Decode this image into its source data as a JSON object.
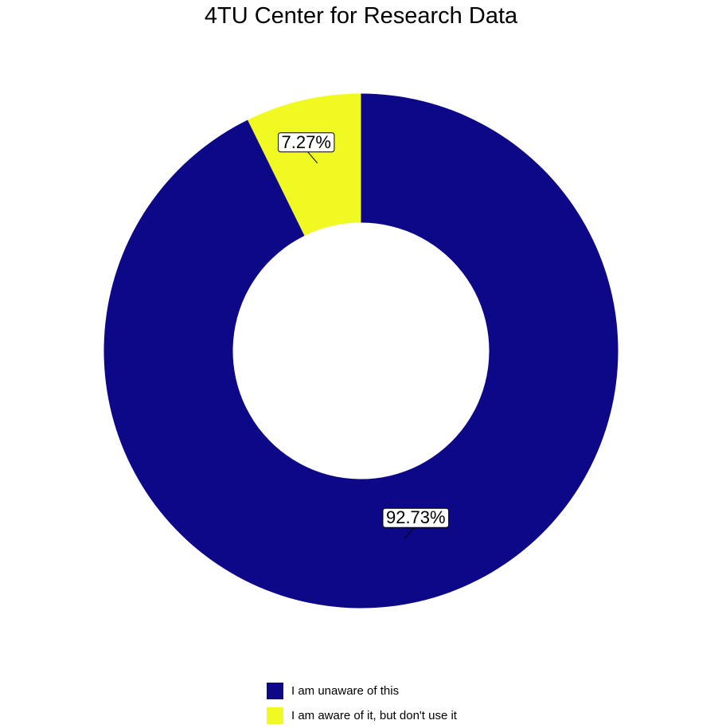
{
  "chart_data": {
    "type": "pie",
    "variant": "donut",
    "title": "4TU Center for Research Data",
    "slices": [
      {
        "label": "I am aware of it, but don't use it",
        "value": 7.27,
        "value_label": "7.27%",
        "color": "#F0F921"
      },
      {
        "label": "I am unaware of this",
        "value": 92.73,
        "value_label": "92.73%",
        "color": "#0D0887"
      }
    ],
    "legend": {
      "placement": "bottom",
      "entries": [
        {
          "label": "I am unaware of this",
          "color": "#0D0887"
        },
        {
          "label": "I am aware of it, but don't use it",
          "color": "#F0F921"
        }
      ]
    }
  }
}
